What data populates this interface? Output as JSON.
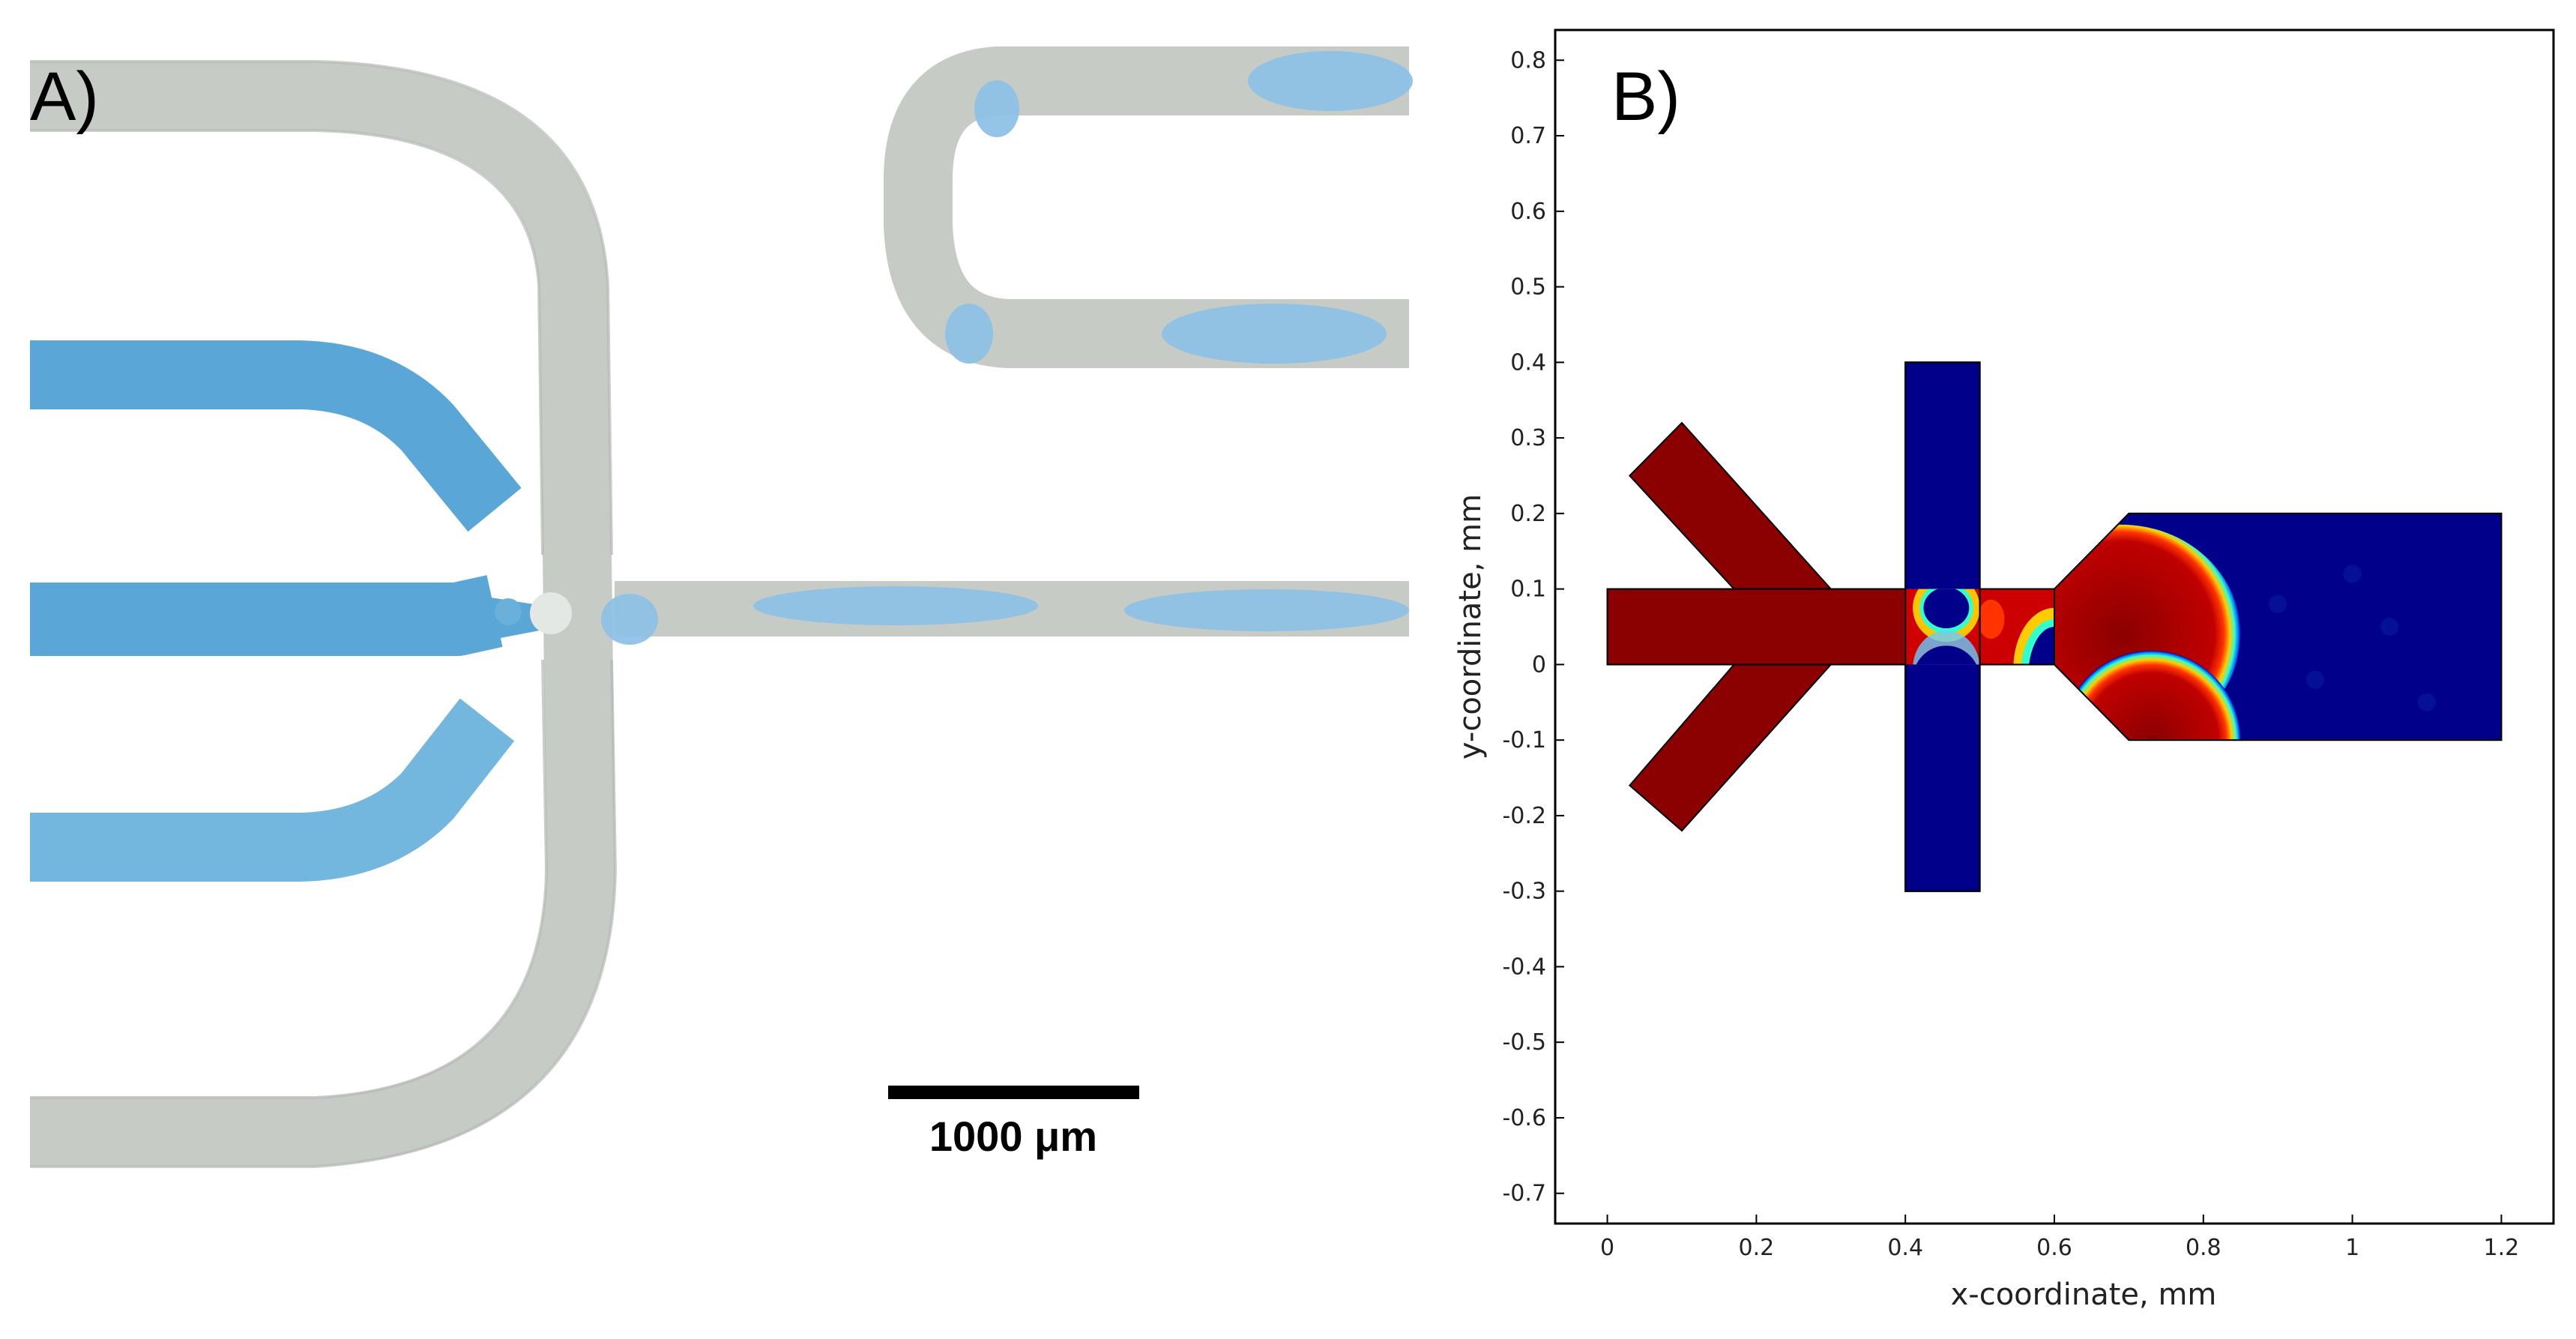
{
  "panel_a": {
    "letter": "A)",
    "scale_bar_label": "1000 μm"
  },
  "panel_b": {
    "letter": "B)"
  },
  "chart_data": {
    "type": "heatmap",
    "xlabel": "x-coordinate, mm",
    "ylabel": "y-coordinate, mm",
    "xlim": [
      -0.07,
      1.27
    ],
    "ylim": [
      -0.74,
      0.84
    ],
    "x_ticks": [
      0,
      0.2,
      0.4,
      0.6,
      0.8,
      1,
      1.2
    ],
    "x_tick_labels": [
      "0",
      "0.2",
      "0.4",
      "0.6",
      "0.8",
      "1",
      "1.2"
    ],
    "y_ticks": [
      0.8,
      0.7,
      0.6,
      0.5,
      0.4,
      0.3,
      0.2,
      0.1,
      0,
      -0.1,
      -0.2,
      -0.3,
      -0.4,
      -0.5,
      -0.6,
      -0.7
    ],
    "y_tick_labels": [
      "0.8",
      "0.7",
      "0.6",
      "0.5",
      "0.4",
      "0.3",
      "0.2",
      "0.1",
      "0",
      "-0.1",
      "-0.2",
      "-0.3",
      "-0.4",
      "-0.5",
      "-0.6",
      "-0.7"
    ],
    "colors": {
      "dispersed": "#8b0000",
      "continuous": "#00008b"
    },
    "domain": {
      "inlet_channel": [
        [
          0,
          0
        ],
        [
          0.4,
          0
        ],
        [
          0.4,
          0.1
        ],
        [
          0,
          0.1
        ]
      ],
      "upper_side_arm": [
        [
          0.03,
          0.25
        ],
        [
          0.1,
          0.32
        ],
        [
          0.3,
          0.1
        ],
        [
          0.17,
          0.1
        ]
      ],
      "lower_side_arm": [
        [
          0.03,
          -0.16
        ],
        [
          0.1,
          -0.22
        ],
        [
          0.3,
          0
        ],
        [
          0.17,
          0
        ]
      ],
      "cross_channel": [
        [
          0.4,
          -0.3
        ],
        [
          0.5,
          -0.3
        ],
        [
          0.5,
          0.4
        ],
        [
          0.4,
          0.4
        ]
      ],
      "neck": [
        [
          0.5,
          0
        ],
        [
          0.6,
          0
        ],
        [
          0.6,
          0.1
        ],
        [
          0.5,
          0.1
        ]
      ],
      "outlet_chamber": [
        [
          0.6,
          0
        ],
        [
          0.6,
          0.1
        ],
        [
          0.7,
          0.2
        ],
        [
          1.2,
          0.2
        ],
        [
          1.2,
          -0.1
        ],
        [
          0.7,
          -0.1
        ]
      ]
    },
    "droplets": {
      "upper": {
        "cx": 0.69,
        "cy": 0.04,
        "r": 0.16
      },
      "lower": {
        "cx": 0.73,
        "cy": -0.1,
        "r": 0.12
      }
    }
  }
}
